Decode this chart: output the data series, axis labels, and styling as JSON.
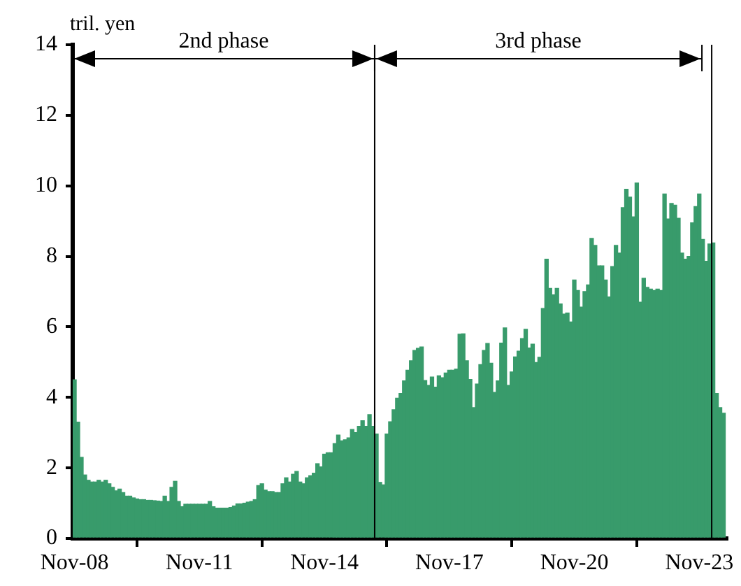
{
  "chart_data": {
    "type": "bar",
    "ylabel": "tril. yen",
    "x": [
      "2008-11",
      "2008-12",
      "2009-01",
      "2009-02",
      "2009-03",
      "2009-04",
      "2009-05",
      "2009-06",
      "2009-07",
      "2009-08",
      "2009-09",
      "2009-10",
      "2009-11",
      "2009-12",
      "2010-01",
      "2010-02",
      "2010-03",
      "2010-04",
      "2010-05",
      "2010-06",
      "2010-07",
      "2010-08",
      "2010-09",
      "2010-10",
      "2010-11",
      "2010-12",
      "2011-01",
      "2011-02",
      "2011-03",
      "2011-04",
      "2011-05",
      "2011-06",
      "2011-07",
      "2011-08",
      "2011-09",
      "2011-10",
      "2011-11",
      "2011-12",
      "2012-01",
      "2012-02",
      "2012-03",
      "2012-04",
      "2012-05",
      "2012-06",
      "2012-07",
      "2012-08",
      "2012-09",
      "2012-10",
      "2012-11",
      "2012-12",
      "2013-01",
      "2013-02",
      "2013-03",
      "2013-04",
      "2013-05",
      "2013-06",
      "2013-07",
      "2013-08",
      "2013-09",
      "2013-10",
      "2013-11",
      "2013-12",
      "2014-01",
      "2014-02",
      "2014-03",
      "2014-04",
      "2014-05",
      "2014-06",
      "2014-07",
      "2014-08",
      "2014-09",
      "2014-10",
      "2014-11",
      "2014-12",
      "2015-01",
      "2015-02",
      "2015-03",
      "2015-04",
      "2015-05",
      "2015-06",
      "2015-07",
      "2015-08",
      "2015-09",
      "2015-10",
      "2015-11",
      "2015-12",
      "2016-01",
      "2016-02",
      "2016-03",
      "2016-04",
      "2016-05",
      "2016-06",
      "2016-07",
      "2016-08",
      "2016-09",
      "2016-10",
      "2016-11",
      "2016-12",
      "2017-01",
      "2017-02",
      "2017-03",
      "2017-04",
      "2017-05",
      "2017-06",
      "2017-07",
      "2017-08",
      "2017-09",
      "2017-10",
      "2017-11",
      "2017-12",
      "2018-01",
      "2018-02",
      "2018-03",
      "2018-04",
      "2018-05",
      "2018-06",
      "2018-07",
      "2018-08",
      "2018-09",
      "2018-10",
      "2018-11",
      "2018-12",
      "2019-01",
      "2019-02",
      "2019-03",
      "2019-04",
      "2019-05",
      "2019-06",
      "2019-07",
      "2019-08",
      "2019-09",
      "2019-10",
      "2019-11",
      "2019-12",
      "2020-01",
      "2020-02",
      "2020-03",
      "2020-04",
      "2020-05",
      "2020-06",
      "2020-07",
      "2020-08",
      "2020-09",
      "2020-10",
      "2020-11",
      "2020-12",
      "2021-01",
      "2021-02",
      "2021-03",
      "2021-04",
      "2021-05",
      "2021-06",
      "2021-07",
      "2021-08",
      "2021-09",
      "2021-10",
      "2021-11",
      "2021-12",
      "2022-01",
      "2022-02",
      "2022-03",
      "2022-04",
      "2022-05",
      "2022-06",
      "2022-07",
      "2022-08",
      "2022-09",
      "2022-10",
      "2022-11",
      "2022-12",
      "2023-01",
      "2023-02",
      "2023-03",
      "2023-04",
      "2023-05",
      "2023-06",
      "2023-07",
      "2023-08",
      "2023-09",
      "2023-10",
      "2023-11",
      "2023-12",
      "2024-01",
      "2024-02",
      "2024-03",
      "2024-04",
      "2024-05",
      "2024-06"
    ],
    "values": [
      4.5,
      3.3,
      2.3,
      1.8,
      1.65,
      1.6,
      1.6,
      1.65,
      1.6,
      1.65,
      1.55,
      1.45,
      1.35,
      1.4,
      1.3,
      1.2,
      1.2,
      1.15,
      1.12,
      1.1,
      1.1,
      1.08,
      1.08,
      1.07,
      1.06,
      1.05,
      1.2,
      1.05,
      1.45,
      1.62,
      1.05,
      0.9,
      0.97,
      0.97,
      0.97,
      0.97,
      0.97,
      0.97,
      0.97,
      1.05,
      0.9,
      0.86,
      0.86,
      0.86,
      0.86,
      0.88,
      0.92,
      0.98,
      0.98,
      1.0,
      1.03,
      1.05,
      1.1,
      1.5,
      1.55,
      1.37,
      1.33,
      1.33,
      1.3,
      1.3,
      1.55,
      1.72,
      1.6,
      1.82,
      1.9,
      1.6,
      1.55,
      1.72,
      1.78,
      1.85,
      2.12,
      2.03,
      2.39,
      2.43,
      2.43,
      2.69,
      2.93,
      2.77,
      2.8,
      2.85,
      3.09,
      3.0,
      3.18,
      3.34,
      3.18,
      3.51,
      3.18,
      2.96,
      1.59,
      1.52,
      2.96,
      3.31,
      3.65,
      3.98,
      4.11,
      4.47,
      4.77,
      5.04,
      5.33,
      5.39,
      5.43,
      4.48,
      4.34,
      4.58,
      4.29,
      4.61,
      4.56,
      4.69,
      4.77,
      4.77,
      4.8,
      5.79,
      5.8,
      5.04,
      4.51,
      3.71,
      4.38,
      4.93,
      5.33,
      5.53,
      4.97,
      4.14,
      4.47,
      5.54,
      5.97,
      4.34,
      4.72,
      5.15,
      5.31,
      5.67,
      5.93,
      5.4,
      5.51,
      4.99,
      5.14,
      6.52,
      7.92,
      7.09,
      6.91,
      7.09,
      6.65,
      6.36,
      6.39,
      6.14,
      7.33,
      7.03,
      6.56,
      7.0,
      7.19,
      8.51,
      8.31,
      7.73,
      7.73,
      7.33,
      6.85,
      7.71,
      8.31,
      8.09,
      9.38,
      9.9,
      9.68,
      9.12,
      10.08,
      6.7,
      7.38,
      7.12,
      7.07,
      7.03,
      7.07,
      7.03,
      9.77,
      9.06,
      9.5,
      9.45,
      9.08,
      8.09,
      7.92,
      8.0,
      8.95,
      9.41,
      9.77,
      8.48,
      7.86,
      8.35,
      8.38,
      4.11,
      3.71,
      3.55
    ],
    "color": "#389b6b",
    "xlim": [
      "2008-10-16",
      "2024-07-01"
    ],
    "xticks": [
      {
        "value": "2008-11",
        "label": "Nov-08"
      },
      {
        "value": "2011-11",
        "label": "Nov-11"
      },
      {
        "value": "2014-11",
        "label": "Nov-14"
      },
      {
        "value": "2017-11",
        "label": "Nov-17"
      },
      {
        "value": "2020-11",
        "label": "Nov-20"
      },
      {
        "value": "2023-11",
        "label": "Nov-23"
      }
    ],
    "ylim": [
      0,
      14
    ],
    "yticks": [
      0,
      2,
      4,
      6,
      8,
      10,
      12,
      14
    ],
    "ref_lines": [
      {
        "axis": "x",
        "value": "2016-01-16",
        "color": "#000000"
      },
      {
        "axis": "x",
        "value": "2024-02-18",
        "color": "#000000"
      }
    ],
    "annotations": [
      "2nd phase",
      "3rd phase"
    ],
    "grid": false,
    "legend": false
  }
}
